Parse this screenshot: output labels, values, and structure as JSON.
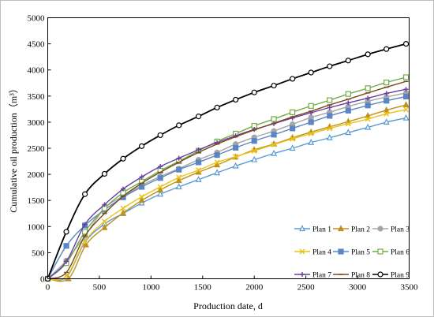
{
  "chart_data": {
    "type": "line",
    "xlabel": "Production date, d",
    "ylabel": "Cumulative oil production（m³）",
    "xlim": [
      0,
      3500
    ],
    "ylim": [
      0,
      5000
    ],
    "xticks": [
      0,
      500,
      1000,
      1500,
      2000,
      2500,
      3000,
      3500
    ],
    "yticks": [
      0,
      500,
      1000,
      1500,
      2000,
      2500,
      3000,
      3500,
      4000,
      4500,
      5000
    ],
    "legend_position": "lower-right",
    "grid": false,
    "series": [
      {
        "name": "Plan 1",
        "color": "#5b9bd5",
        "marker": "triangle",
        "fill": "none",
        "x": [
          0,
          180,
          360,
          550,
          730,
          910,
          1090,
          1270,
          1460,
          1640,
          1820,
          2000,
          2190,
          2370,
          2550,
          2730,
          2910,
          3100,
          3280,
          3470
        ],
        "y": [
          0,
          30,
          700,
          1050,
          1250,
          1450,
          1620,
          1760,
          1900,
          2030,
          2160,
          2280,
          2400,
          2500,
          2610,
          2700,
          2800,
          2900,
          3000,
          3080
        ]
      },
      {
        "name": "Plan 2",
        "color": "#c0901a",
        "marker": "triangle",
        "fill": "color",
        "x": [
          0,
          200,
          370,
          550,
          730,
          910,
          1090,
          1270,
          1460,
          1640,
          1820,
          2000,
          2190,
          2370,
          2550,
          2730,
          2910,
          3100,
          3280,
          3470
        ],
        "y": [
          0,
          0,
          650,
          980,
          1260,
          1500,
          1700,
          1880,
          2040,
          2180,
          2330,
          2470,
          2580,
          2700,
          2810,
          2910,
          3010,
          3120,
          3230,
          3330
        ]
      },
      {
        "name": "Plan 3",
        "color": "#a5a5a5",
        "marker": "circle",
        "fill": "color",
        "x": [
          0,
          180,
          360,
          550,
          730,
          910,
          1090,
          1270,
          1460,
          1640,
          1820,
          2000,
          2190,
          2370,
          2550,
          2730,
          2910,
          3100,
          3280,
          3470
        ],
        "y": [
          0,
          350,
          820,
          1350,
          1580,
          1790,
          1960,
          2110,
          2280,
          2420,
          2580,
          2710,
          2830,
          2960,
          3090,
          3190,
          3300,
          3400,
          3480,
          3560
        ]
      },
      {
        "name": "Plan 4",
        "color": "#e8c31c",
        "marker": "x",
        "fill": "none",
        "x": [
          0,
          180,
          360,
          550,
          730,
          910,
          1090,
          1270,
          1460,
          1640,
          1820,
          2000,
          2190,
          2370,
          2550,
          2730,
          2910,
          3100,
          3280,
          3470
        ],
        "y": [
          0,
          50,
          720,
          1100,
          1350,
          1570,
          1760,
          1940,
          2080,
          2230,
          2340,
          2450,
          2570,
          2680,
          2780,
          2880,
          2970,
          3060,
          3160,
          3240
        ]
      },
      {
        "name": "Plan 5",
        "color": "#5b86c5",
        "marker": "square",
        "fill": "color",
        "x": [
          0,
          180,
          360,
          550,
          730,
          910,
          1090,
          1270,
          1460,
          1640,
          1820,
          2000,
          2190,
          2370,
          2550,
          2730,
          2910,
          3100,
          3280,
          3470
        ],
        "y": [
          0,
          630,
          1020,
          1320,
          1560,
          1760,
          1930,
          2090,
          2230,
          2370,
          2510,
          2640,
          2760,
          2880,
          3000,
          3120,
          3220,
          3320,
          3410,
          3490
        ]
      },
      {
        "name": "Plan 6",
        "color": "#70ad47",
        "marker": "square",
        "fill": "none",
        "x": [
          0,
          180,
          360,
          550,
          730,
          910,
          1090,
          1270,
          1460,
          1640,
          1820,
          2000,
          2190,
          2370,
          2550,
          2730,
          2910,
          3100,
          3280,
          3470
        ],
        "y": [
          0,
          300,
          900,
          1350,
          1650,
          1860,
          2070,
          2250,
          2450,
          2630,
          2780,
          2930,
          3060,
          3190,
          3310,
          3420,
          3540,
          3650,
          3760,
          3860
        ]
      },
      {
        "name": "Plan 7",
        "color": "#6a3fa5",
        "marker": "plus",
        "fill": "none",
        "x": [
          0,
          180,
          360,
          550,
          730,
          910,
          1090,
          1270,
          1460,
          1640,
          1820,
          2000,
          2190,
          2370,
          2550,
          2730,
          2910,
          3100,
          3280,
          3470
        ],
        "y": [
          0,
          330,
          1040,
          1420,
          1720,
          1950,
          2150,
          2310,
          2470,
          2610,
          2740,
          2860,
          2970,
          3080,
          3180,
          3280,
          3370,
          3460,
          3550,
          3630
        ]
      },
      {
        "name": "Plan 8",
        "color": "#7b4a1e",
        "marker": "line",
        "fill": "none",
        "x": [
          0,
          180,
          360,
          550,
          730,
          910,
          1090,
          1270,
          1460,
          1640,
          1820,
          2000,
          2190,
          2370,
          2550,
          2730,
          2910,
          3100,
          3280,
          3470
        ],
        "y": [
          0,
          120,
          820,
          1250,
          1580,
          1830,
          2040,
          2230,
          2420,
          2580,
          2720,
          2850,
          2980,
          3100,
          3210,
          3330,
          3440,
          3560,
          3670,
          3780
        ]
      },
      {
        "name": "Plan 9",
        "color": "#000000",
        "marker": "circle",
        "fill": "none",
        "x": [
          0,
          180,
          360,
          550,
          730,
          910,
          1090,
          1270,
          1460,
          1640,
          1820,
          2000,
          2190,
          2370,
          2550,
          2730,
          2910,
          3100,
          3280,
          3470
        ],
        "y": [
          0,
          900,
          1620,
          2010,
          2300,
          2540,
          2750,
          2940,
          3110,
          3280,
          3430,
          3570,
          3700,
          3830,
          3950,
          4070,
          4180,
          4300,
          4400,
          4500
        ]
      }
    ]
  }
}
